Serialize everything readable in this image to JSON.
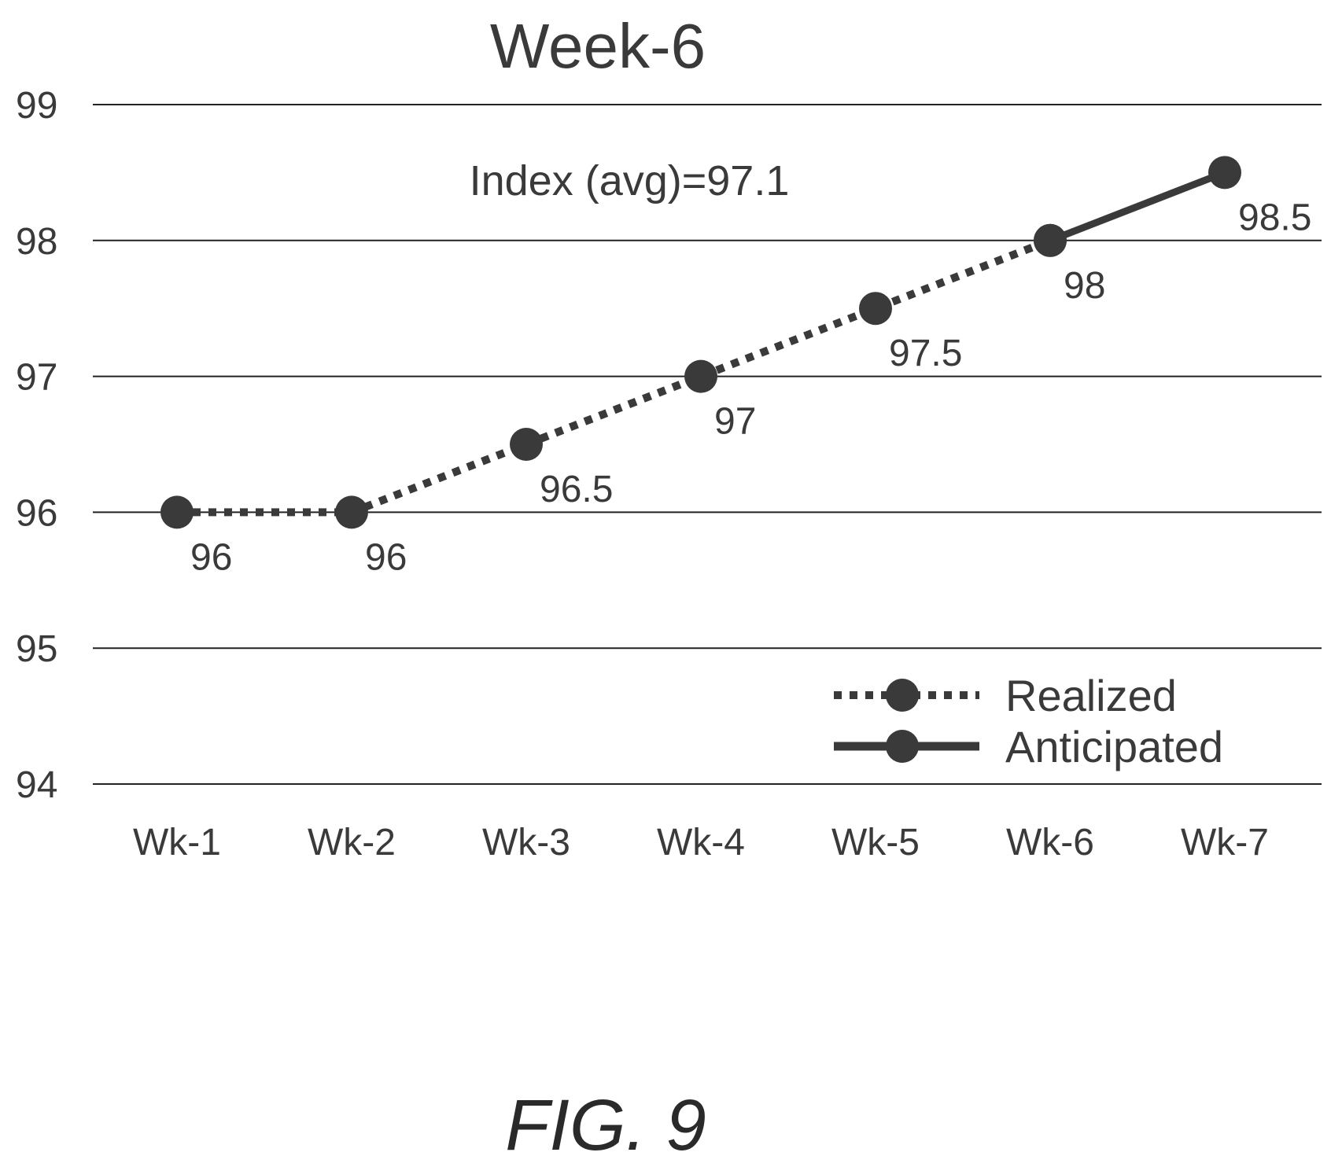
{
  "colors": {
    "series": "#3a3a3a",
    "gridline": "#222222",
    "text": "#3a3a3a"
  },
  "chart_data": {
    "type": "line",
    "title": "Week-6",
    "xlabel": "",
    "ylabel": "",
    "categories": [
      "Wk-1",
      "Wk-2",
      "Wk-3",
      "Wk-4",
      "Wk-5",
      "Wk-6",
      "Wk-7"
    ],
    "ylim": [
      94,
      99
    ],
    "yticks": [
      "99",
      "98",
      "97",
      "96",
      "95",
      "94"
    ],
    "grid": true,
    "legend_position": "bottom-right",
    "annotation": "Index (avg)=97.1",
    "series": [
      {
        "name": "Realized",
        "style": "dotted",
        "values": [
          96,
          96,
          96.5,
          97,
          97.5,
          98,
          null
        ],
        "labels": [
          "96",
          "96",
          "96.5",
          "97",
          "97.5",
          "",
          ""
        ]
      },
      {
        "name": "Anticipated",
        "style": "solid",
        "values": [
          null,
          null,
          null,
          null,
          null,
          98,
          98.5
        ],
        "labels": [
          "",
          "",
          "",
          "",
          "",
          "98",
          "98.5"
        ]
      }
    ]
  },
  "caption": "FIG. 9"
}
